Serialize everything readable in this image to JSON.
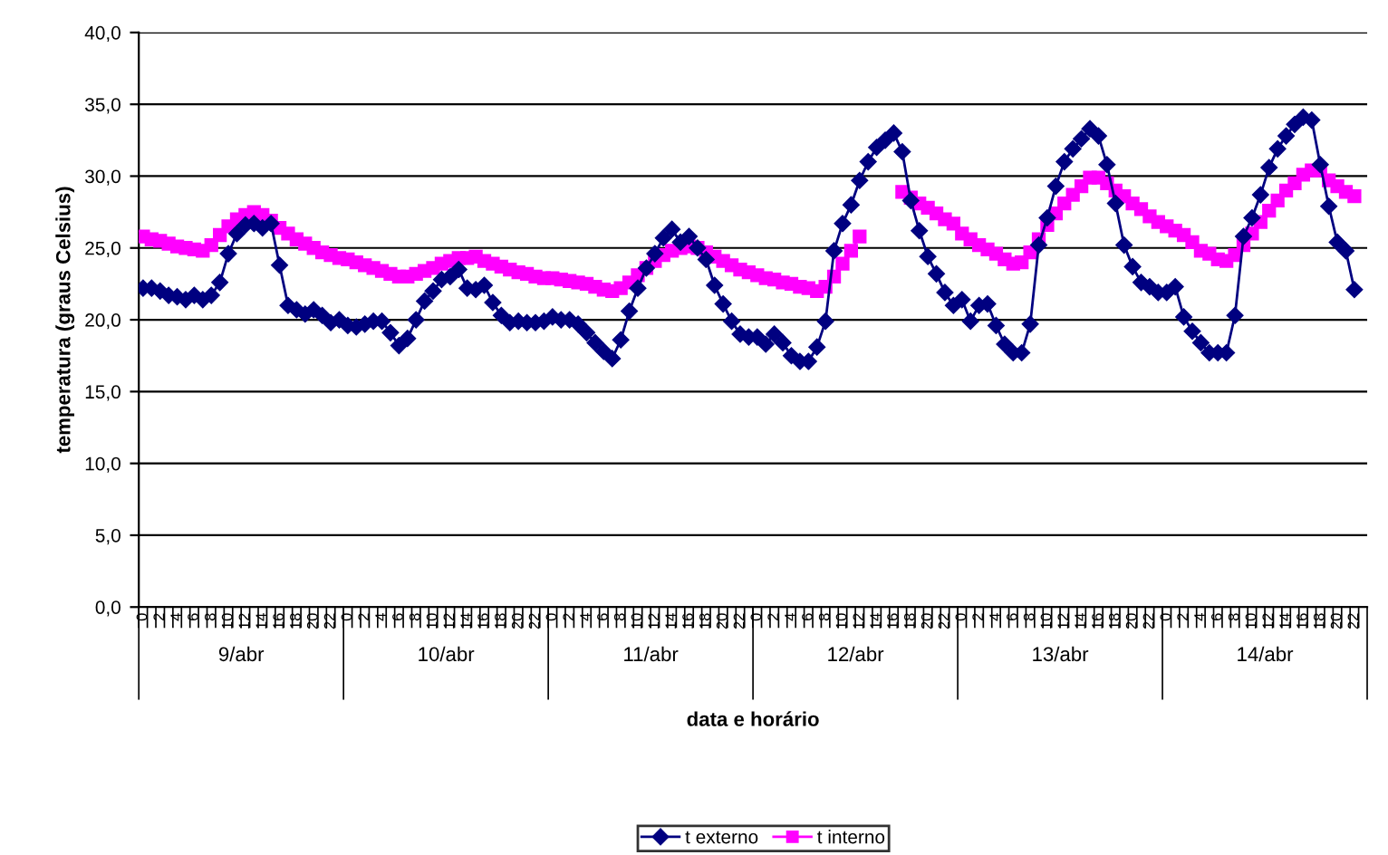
{
  "chart_data": {
    "type": "line",
    "xlabel": "data e horário",
    "ylabel": "temperatura (graus Celsius)",
    "categories": [
      "0",
      null,
      "2",
      null,
      "4",
      null,
      "6",
      null,
      "8",
      null,
      "10",
      null,
      "12",
      null,
      "14",
      null,
      "16",
      null,
      "18",
      null,
      "20",
      null,
      "22",
      null,
      "0",
      null,
      "2",
      null,
      "4",
      null,
      "6",
      null,
      "8",
      null,
      "10",
      null,
      "12",
      null,
      "14",
      null,
      "16",
      null,
      "18",
      null,
      "20",
      null,
      "22",
      null,
      "0",
      null,
      "2",
      null,
      "4",
      null,
      "6",
      null,
      "8",
      null,
      "10",
      null,
      "12",
      null,
      "14",
      null,
      "16",
      null,
      "18",
      null,
      "20",
      null,
      "22",
      null,
      "0",
      null,
      "2",
      null,
      "4",
      null,
      "6",
      null,
      "8",
      null,
      "10",
      null,
      "12",
      null,
      "14",
      null,
      "16",
      null,
      "18",
      null,
      "20",
      null,
      "22",
      null,
      "0",
      null,
      "2",
      null,
      "4",
      null,
      "6",
      null,
      "8",
      null,
      "10",
      null,
      "12",
      null,
      "14",
      null,
      "16",
      null,
      "18",
      null,
      "20",
      null,
      "22",
      null,
      "0",
      null,
      "2",
      null,
      "4",
      null,
      "6",
      null,
      "8",
      null,
      "10",
      null,
      "12",
      null,
      "14",
      null,
      "16",
      null,
      "18",
      null,
      "20",
      null,
      "22",
      null
    ],
    "annotations": [
      "9/abr",
      "10/abr",
      "11/abr",
      "12/abr",
      "13/abr",
      "14/abr"
    ],
    "series": [
      {
        "name": "t externo",
        "color": "#000080",
        "marker": "diamond",
        "values": [
          22.2,
          22.2,
          22.0,
          21.7,
          21.6,
          21.4,
          21.7,
          21.4,
          21.7,
          22.6,
          24.6,
          26.0,
          26.6,
          26.7,
          26.4,
          26.7,
          23.8,
          21.0,
          20.7,
          20.4,
          20.7,
          20.3,
          19.8,
          20.0,
          19.6,
          19.5,
          19.7,
          19.9,
          19.9,
          19.1,
          18.2,
          18.7,
          20.0,
          21.3,
          22.0,
          22.8,
          23.0,
          23.5,
          22.2,
          22.1,
          22.4,
          21.2,
          20.3,
          19.8,
          19.9,
          19.8,
          19.8,
          19.9,
          20.2,
          20.0,
          20.0,
          19.7,
          19.1,
          18.4,
          17.8,
          17.3,
          18.6,
          20.6,
          22.2,
          23.6,
          24.6,
          25.7,
          26.3,
          25.4,
          25.8,
          25.0,
          24.2,
          22.4,
          21.1,
          19.9,
          19.0,
          18.8,
          18.8,
          18.3,
          19.0,
          18.4,
          17.5,
          17.1,
          17.1,
          18.1,
          19.9,
          24.8,
          26.7,
          28.0,
          29.7,
          31.0,
          32.0,
          32.5,
          33.0,
          31.7,
          28.3,
          26.2,
          24.4,
          23.2,
          21.9,
          21.0,
          21.4,
          19.9,
          21.0,
          21.1,
          19.6,
          18.3,
          17.7,
          17.7,
          19.7,
          25.2,
          27.1,
          29.3,
          31.0,
          31.9,
          32.6,
          33.3,
          32.8,
          30.8,
          28.1,
          25.2,
          23.7,
          22.6,
          22.3,
          21.9,
          21.9,
          22.3,
          20.2,
          19.2,
          18.4,
          17.7,
          17.7,
          17.7,
          20.3,
          25.8,
          27.1,
          28.7,
          30.6,
          31.9,
          32.8,
          33.6,
          34.1,
          33.9,
          30.8,
          27.9,
          25.4,
          24.8,
          22.1,
          null
        ]
      },
      {
        "name": "t interno",
        "color": "#ff00ff",
        "marker": "square",
        "values": [
          25.8,
          25.6,
          25.5,
          25.3,
          25.1,
          25.0,
          24.9,
          24.8,
          25.2,
          25.9,
          26.5,
          27.0,
          27.3,
          27.5,
          27.3,
          26.9,
          26.4,
          26.0,
          25.6,
          25.3,
          25.0,
          24.7,
          24.5,
          24.3,
          24.2,
          24.0,
          23.8,
          23.6,
          23.4,
          23.2,
          23.0,
          23.0,
          23.2,
          23.4,
          23.6,
          23.9,
          24.1,
          24.3,
          24.3,
          24.4,
          24.1,
          23.9,
          23.7,
          23.5,
          23.3,
          23.2,
          23.0,
          22.9,
          22.9,
          22.8,
          22.7,
          22.6,
          22.5,
          22.3,
          22.1,
          22.0,
          22.2,
          22.6,
          23.1,
          23.6,
          24.1,
          24.5,
          24.8,
          25.0,
          25.1,
          25.0,
          24.7,
          24.4,
          24.1,
          23.8,
          23.5,
          23.3,
          23.1,
          22.9,
          22.8,
          22.6,
          22.5,
          22.3,
          22.2,
          22.0,
          22.3,
          23.0,
          23.9,
          24.8,
          25.8,
          null,
          null,
          null,
          null,
          28.9,
          28.5,
          28.1,
          27.8,
          27.4,
          27.0,
          26.7,
          26.0,
          25.6,
          25.2,
          24.9,
          24.6,
          24.2,
          23.9,
          24.0,
          24.7,
          25.6,
          26.6,
          27.4,
          28.1,
          28.7,
          29.3,
          29.9,
          29.9,
          29.5,
          29.0,
          28.6,
          28.1,
          27.7,
          27.2,
          26.8,
          26.5,
          26.2,
          25.9,
          25.4,
          24.8,
          24.6,
          24.2,
          24.1,
          24.5,
          25.2,
          26.0,
          26.8,
          27.6,
          28.3,
          29.0,
          29.5,
          30.1,
          30.4,
          30.4,
          29.7,
          29.3,
          28.9,
          28.6,
          null
        ]
      }
    ],
    "ylim": [
      0,
      40
    ],
    "yticks": [
      {
        "value": 0,
        "label": "0,0"
      },
      {
        "value": 5,
        "label": "5,0"
      },
      {
        "value": 10,
        "label": "10,0"
      },
      {
        "value": 15,
        "label": "15,0"
      },
      {
        "value": 20,
        "label": "20,0"
      },
      {
        "value": 25,
        "label": "25,0"
      },
      {
        "value": 30,
        "label": "30,0"
      },
      {
        "value": 35,
        "label": "35,0"
      },
      {
        "value": 40,
        "label": "40,0"
      }
    ],
    "grid": "y",
    "legend": "bottom"
  }
}
